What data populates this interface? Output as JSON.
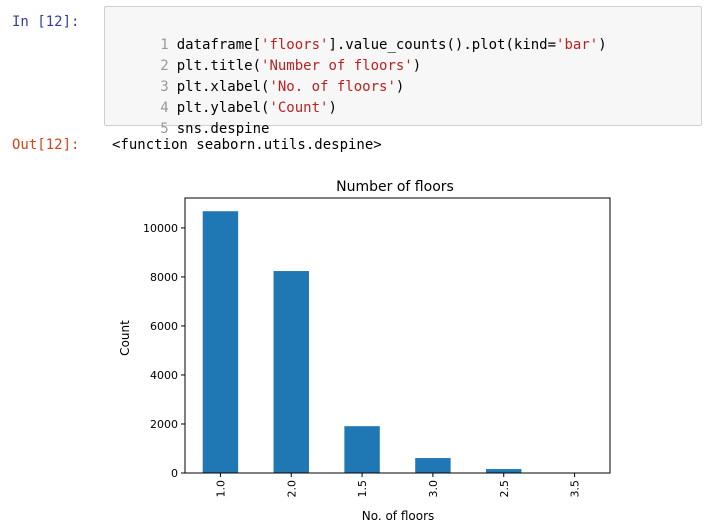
{
  "input_cell": {
    "prompt": "In [12]:",
    "lines": [
      {
        "number": "1",
        "segments": [
          {
            "text": "dataframe[",
            "kind": "code"
          },
          {
            "text": "'floors'",
            "kind": "str"
          },
          {
            "text": "].value_counts().plot(kind=",
            "kind": "code"
          },
          {
            "text": "'bar'",
            "kind": "str"
          },
          {
            "text": ")",
            "kind": "code"
          }
        ]
      },
      {
        "number": "2",
        "segments": [
          {
            "text": "plt.title(",
            "kind": "code"
          },
          {
            "text": "'Number of floors'",
            "kind": "str"
          },
          {
            "text": ")",
            "kind": "code"
          }
        ]
      },
      {
        "number": "3",
        "segments": [
          {
            "text": "plt.xlabel(",
            "kind": "code"
          },
          {
            "text": "'No. of floors'",
            "kind": "str"
          },
          {
            "text": ")",
            "kind": "code"
          }
        ]
      },
      {
        "number": "4",
        "segments": [
          {
            "text": "plt.ylabel(",
            "kind": "code"
          },
          {
            "text": "'Count'",
            "kind": "str"
          },
          {
            "text": ")",
            "kind": "code"
          }
        ]
      },
      {
        "number": "5",
        "segments": [
          {
            "text": "sns.despine",
            "kind": "code"
          }
        ]
      }
    ]
  },
  "output_cell": {
    "prompt": "Out[12]:",
    "text": "<function seaborn.utils.despine>"
  },
  "chart_data": {
    "type": "bar",
    "title": "Number of floors",
    "xlabel": "No. of floors",
    "ylabel": "Count",
    "categories": [
      "1.0",
      "2.0",
      "1.5",
      "3.0",
      "2.5",
      "3.5"
    ],
    "values": [
      10680,
      8240,
      1910,
      610,
      160,
      8
    ],
    "ylim": [
      0,
      11220
    ],
    "yticks": [
      0,
      2000,
      4000,
      6000,
      8000,
      10000
    ],
    "bar_color": "#1f77b4",
    "grid": false
  },
  "colors": {
    "in_prompt": "#303F9F",
    "out_prompt": "#D84315",
    "string": "#BA2121"
  }
}
